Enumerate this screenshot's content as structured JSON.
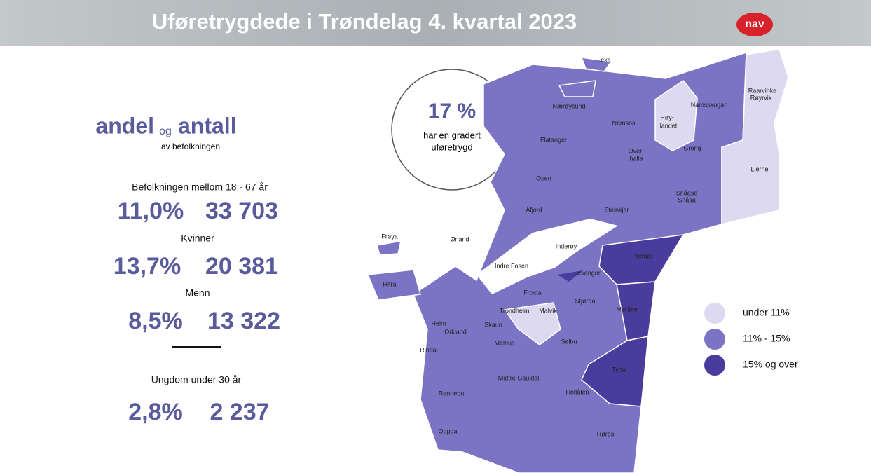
{
  "header": {
    "title": "Uføretrygdede i Trøndelag 4. kvartal 2023",
    "logo": "nav"
  },
  "summary": {
    "heading_a": "andel",
    "heading_og": "og",
    "heading_b": "antall",
    "subheading": "av befolkningen"
  },
  "groups": [
    {
      "label": "Befolkningen mellom 18 - 67 år",
      "share": "11,0%",
      "count": "33 703"
    },
    {
      "label": "Kvinner",
      "share": "13,7%",
      "count": "20 381"
    },
    {
      "label": "Menn",
      "share": "8,5%",
      "count": "13 322"
    },
    {
      "label": "Ungdom under 30 år",
      "share": "2,8%",
      "count": "2 237"
    }
  ],
  "callout": {
    "value": "17 %",
    "line1": "har en gradert",
    "line2": "uføretrygd"
  },
  "map": {
    "labels": [
      "Leka",
      "Nærøysund",
      "Namsos",
      "Høy-",
      "landet",
      "Namsskogan",
      "Raarvihke",
      "Røyrvik",
      "Flatanger",
      "Over-",
      "halla",
      "Grong",
      "Lierne",
      "Osen",
      "Snåase",
      "Snåsa",
      "Åfjord",
      "Steinkjer",
      "Frøya",
      "Ørland",
      "Inderøy",
      "Verdal",
      "Hitra",
      "Indre Fosen",
      "Levanger",
      "Frosta",
      "Trondheim",
      "Malvik",
      "Stjørdal",
      "Meråker",
      "Heim",
      "Orkland",
      "Skaun",
      "Melhus",
      "Selbu",
      "Rindal",
      "Midtre Gauldal",
      "Holtålen",
      "Tydal",
      "Rennebu",
      "Oppdal",
      "Røros"
    ]
  },
  "legend": [
    {
      "label": "under 11%",
      "color": "#dcd9f0"
    },
    {
      "label": "11% - 15%",
      "color": "#7b74c4"
    },
    {
      "label": "15% og over",
      "color": "#4a3c9c"
    }
  ]
}
